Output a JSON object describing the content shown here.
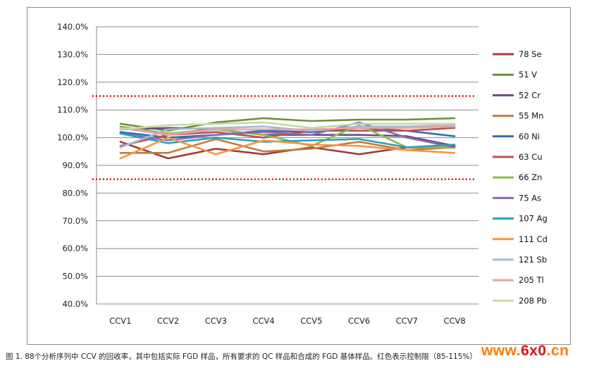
{
  "chart_data": {
    "type": "line",
    "categories": [
      "CCV1",
      "CCV2",
      "CCV3",
      "CCV4",
      "CCV5",
      "CCV6",
      "CCV7",
      "CCV8"
    ],
    "ylim": [
      40,
      140
    ],
    "yticks": [
      "40.0%",
      "50.0%",
      "60.0%",
      "70.0%",
      "80.0%",
      "90.0%",
      "100.0%",
      "110.0%",
      "120.0%",
      "130.0%",
      "140.0%"
    ],
    "grid": "horizontal",
    "legend_position": "right",
    "control_limits": {
      "upper": 115,
      "lower": 85,
      "color": "#ff0000"
    },
    "series": [
      {
        "name": "78 Se",
        "color": "#a53a3a",
        "values": [
          98.5,
          92.5,
          96.0,
          94.0,
          96.5,
          94.0,
          96.5,
          96.5
        ]
      },
      {
        "name": "51 V",
        "color": "#6f8e3a",
        "values": [
          105.0,
          102.5,
          105.5,
          107.0,
          106.0,
          106.5,
          106.5,
          107.0
        ]
      },
      {
        "name": "52 Cr",
        "color": "#6b4a8a",
        "values": [
          103.0,
          103.5,
          103.0,
          101.0,
          101.0,
          101.0,
          100.5,
          97.0
        ]
      },
      {
        "name": "55 Mn",
        "color": "#c47b3a",
        "values": [
          94.5,
          94.5,
          99.5,
          95.0,
          96.0,
          98.5,
          95.5,
          96.5
        ]
      },
      {
        "name": "60 Ni",
        "color": "#2e6fad",
        "values": [
          102.0,
          100.0,
          101.0,
          102.5,
          102.0,
          103.5,
          102.5,
          100.5
        ]
      },
      {
        "name": "63 Cu",
        "color": "#c0504d",
        "values": [
          97.0,
          101.0,
          102.0,
          100.0,
          102.5,
          102.5,
          102.5,
          103.5
        ]
      },
      {
        "name": "66 Zn",
        "color": "#8dbb4a",
        "values": [
          104.0,
          101.5,
          103.0,
          101.0,
          97.0,
          104.5,
          96.5,
          96.5
        ]
      },
      {
        "name": "75 As",
        "color": "#8a6bb0",
        "values": [
          101.5,
          99.0,
          101.0,
          102.0,
          101.0,
          105.5,
          100.0,
          96.5
        ]
      },
      {
        "name": "107 Ag",
        "color": "#2aa0b8",
        "values": [
          101.5,
          98.0,
          100.0,
          98.5,
          99.0,
          99.5,
          96.5,
          97.5
        ]
      },
      {
        "name": "111 Cd",
        "color": "#f79646",
        "values": [
          92.5,
          100.0,
          94.0,
          99.0,
          97.5,
          97.0,
          95.5,
          94.5
        ]
      },
      {
        "name": "121 Sb",
        "color": "#a7b8d9",
        "values": [
          96.5,
          103.0,
          103.5,
          104.0,
          102.5,
          104.0,
          104.0,
          104.5
        ]
      },
      {
        "name": "205 Tl",
        "color": "#e6a5a5",
        "values": [
          103.5,
          101.0,
          103.0,
          103.0,
          103.0,
          103.5,
          103.5,
          104.0
        ]
      },
      {
        "name": "208 Pb",
        "color": "#c5dba3",
        "values": [
          103.0,
          104.5,
          105.0,
          105.5,
          103.5,
          105.0,
          105.0,
          105.0
        ]
      }
    ]
  },
  "caption": "图 1. 88个分析序列中 CCV 的回收率，其中包括实际 FGD 样品，所有要求的 QC 样品和合成的 FGD 基体样品。红色表示控制限（85-115%）",
  "watermark": {
    "prefix": "www.",
    "brand": "6x0",
    "suffix": ".cn"
  }
}
